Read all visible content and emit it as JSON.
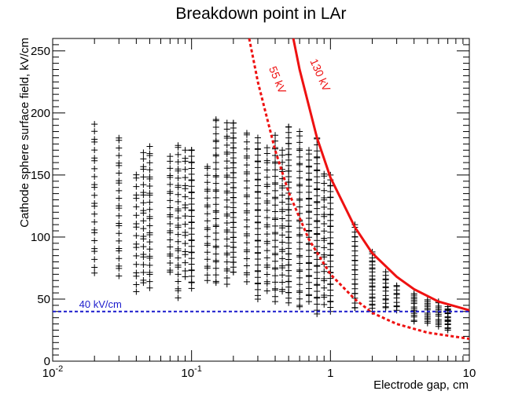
{
  "chart_data": {
    "type": "scatter",
    "title": "Breakdown point in LAr",
    "xlabel": "Electrode gap, cm",
    "ylabel": "Cathode sphere surface field, kV/cm",
    "x_scale": "log",
    "xlim": [
      0.01,
      10
    ],
    "ylim": [
      0,
      260
    ],
    "x_ticks": [
      {
        "value": 0.01,
        "base": "10",
        "exp": "-2"
      },
      {
        "value": 0.1,
        "base": "10",
        "exp": "-1"
      },
      {
        "value": 1,
        "base": "1",
        "exp": ""
      },
      {
        "value": 10,
        "base": "10",
        "exp": ""
      }
    ],
    "y_ticks": [
      {
        "value": 0,
        "label": "0"
      },
      {
        "value": 50,
        "label": "50"
      },
      {
        "value": 100,
        "label": "100"
      },
      {
        "value": 150,
        "label": "150"
      },
      {
        "value": 200,
        "label": "200"
      },
      {
        "value": 250,
        "label": "250"
      }
    ],
    "marker": "+",
    "columns": [
      {
        "x": 0.02,
        "ymin": 71,
        "ymax": 191,
        "n": 24
      },
      {
        "x": 0.03,
        "ymin": 68,
        "ymax": 181,
        "n": 24
      },
      {
        "x": 0.04,
        "ymin": 56,
        "ymax": 152,
        "n": 18
      },
      {
        "x": 0.045,
        "ymin": 62,
        "ymax": 168,
        "n": 22
      },
      {
        "x": 0.05,
        "ymin": 59,
        "ymax": 173,
        "n": 26
      },
      {
        "x": 0.07,
        "ymin": 70,
        "ymax": 165,
        "n": 22
      },
      {
        "x": 0.08,
        "ymin": 51,
        "ymax": 175,
        "n": 28
      },
      {
        "x": 0.09,
        "ymin": 68,
        "ymax": 170,
        "n": 20
      },
      {
        "x": 0.1,
        "ymin": 58,
        "ymax": 172,
        "n": 34
      },
      {
        "x": 0.13,
        "ymin": 65,
        "ymax": 158,
        "n": 22
      },
      {
        "x": 0.15,
        "ymin": 62,
        "ymax": 196,
        "n": 34
      },
      {
        "x": 0.18,
        "ymin": 62,
        "ymax": 192,
        "n": 30
      },
      {
        "x": 0.2,
        "ymin": 70,
        "ymax": 193,
        "n": 44
      },
      {
        "x": 0.25,
        "ymin": 64,
        "ymax": 185,
        "n": 28
      },
      {
        "x": 0.3,
        "ymin": 50,
        "ymax": 180,
        "n": 38
      },
      {
        "x": 0.35,
        "ymin": 56,
        "ymax": 172,
        "n": 26
      },
      {
        "x": 0.4,
        "ymin": 48,
        "ymax": 182,
        "n": 34
      },
      {
        "x": 0.45,
        "ymin": 55,
        "ymax": 170,
        "n": 26
      },
      {
        "x": 0.5,
        "ymin": 47,
        "ymax": 190,
        "n": 46
      },
      {
        "x": 0.6,
        "ymin": 42,
        "ymax": 185,
        "n": 36
      },
      {
        "x": 0.7,
        "ymin": 48,
        "ymax": 170,
        "n": 34
      },
      {
        "x": 0.8,
        "ymin": 38,
        "ymax": 181,
        "n": 40
      },
      {
        "x": 0.9,
        "ymin": 45,
        "ymax": 152,
        "n": 24
      },
      {
        "x": 1.0,
        "ymin": 40,
        "ymax": 150,
        "n": 34
      },
      {
        "x": 1.5,
        "ymin": 42,
        "ymax": 110,
        "n": 26
      },
      {
        "x": 2.0,
        "ymin": 40,
        "ymax": 88,
        "n": 24
      },
      {
        "x": 2.5,
        "ymin": 42,
        "ymax": 72,
        "n": 14
      },
      {
        "x": 3.0,
        "ymin": 41,
        "ymax": 62,
        "n": 10
      },
      {
        "x": 4.0,
        "ymin": 32,
        "ymax": 55,
        "n": 16
      },
      {
        "x": 5.0,
        "ymin": 30,
        "ymax": 50,
        "n": 14
      },
      {
        "x": 6.0,
        "ymin": 28,
        "ymax": 48,
        "n": 14
      },
      {
        "x": 7.0,
        "ymin": 25,
        "ymax": 44,
        "n": 16
      }
    ],
    "curves": [
      {
        "name": "55 kV",
        "label": "55 kV",
        "style": "dashed",
        "color": "#ee1111",
        "points": [
          [
            0.26,
            260
          ],
          [
            0.3,
            225
          ],
          [
            0.4,
            170
          ],
          [
            0.5,
            136
          ],
          [
            0.7,
            98
          ],
          [
            1.0,
            70
          ],
          [
            1.5,
            50
          ],
          [
            2.0,
            39
          ],
          [
            3.0,
            30
          ],
          [
            5.0,
            23
          ],
          [
            10.0,
            18
          ]
        ]
      },
      {
        "name": "130 kV",
        "label": "130 kV",
        "style": "solid",
        "color": "#ee1111",
        "points": [
          [
            0.54,
            260
          ],
          [
            0.6,
            235
          ],
          [
            0.8,
            180
          ],
          [
            1.0,
            148
          ],
          [
            1.5,
            108
          ],
          [
            2.0,
            87
          ],
          [
            3.0,
            68
          ],
          [
            4.0,
            58
          ],
          [
            6.0,
            48
          ],
          [
            10.0,
            41
          ]
        ]
      }
    ],
    "reference_line": {
      "y": 40,
      "label": "40 kV/cm",
      "style": "dashed",
      "color": "#1a1acc"
    }
  }
}
